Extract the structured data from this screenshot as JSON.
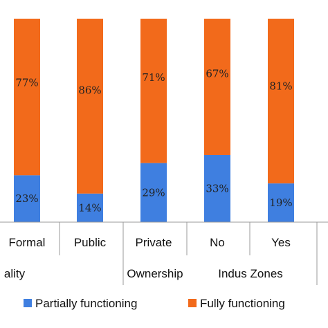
{
  "chart_data": {
    "type": "bar",
    "stacked": true,
    "normalized": true,
    "categories": [
      "Formal",
      "Public",
      "Private",
      "No",
      "Yes"
    ],
    "groups": [
      {
        "label": "ality",
        "categories": [
          "Formal"
        ]
      },
      {
        "label": "Ownership",
        "categories": [
          "Public",
          "Private"
        ]
      },
      {
        "label": "Indus Zones",
        "categories": [
          "No",
          "Yes"
        ]
      }
    ],
    "series": [
      {
        "name": "Partially functioning",
        "color": "#3f7fe0",
        "values": [
          23,
          14,
          29,
          33,
          19
        ],
        "labels": [
          "23%",
          "14%",
          "29%",
          "33%",
          "19%"
        ]
      },
      {
        "name": "Fully functioning",
        "color": "#f26a1b",
        "values": [
          77,
          86,
          71,
          67,
          81
        ],
        "labels": [
          "77%",
          "86%",
          "71%",
          "67%",
          "81%"
        ]
      }
    ],
    "ylim": [
      0,
      100
    ],
    "legend": "bottom",
    "grid": false
  }
}
